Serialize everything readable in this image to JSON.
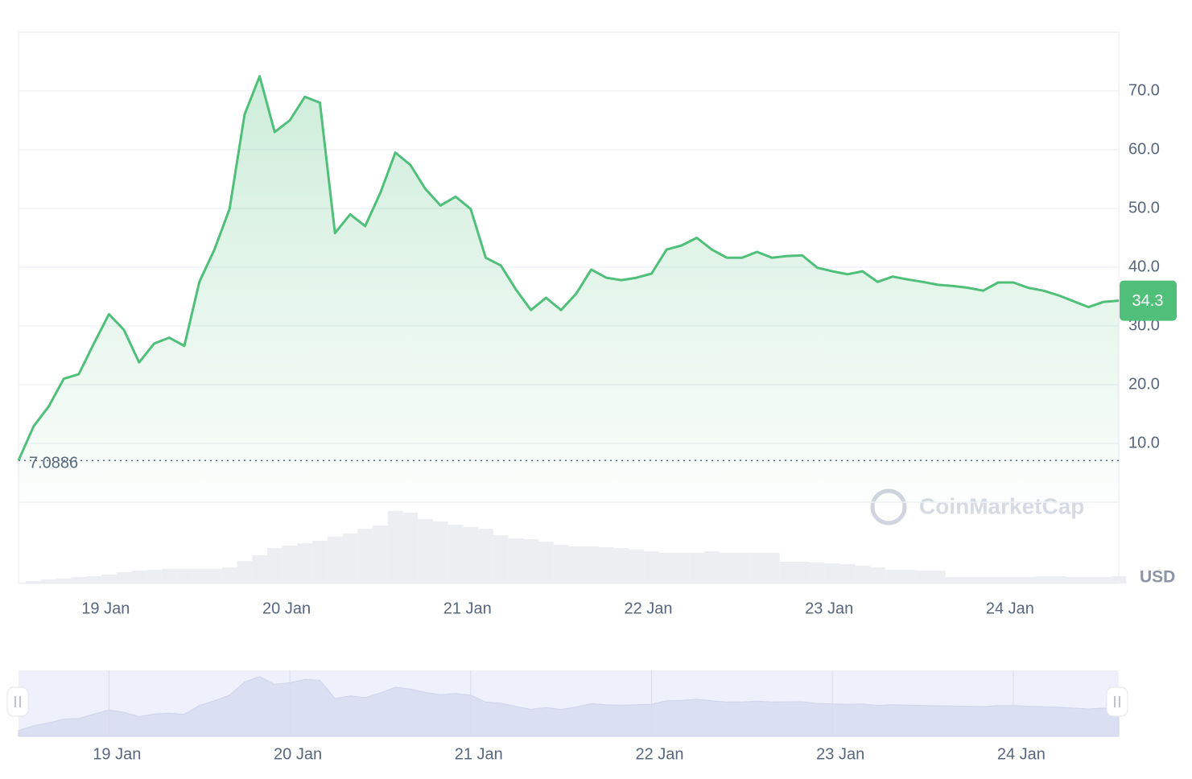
{
  "chart_data": {
    "type": "line",
    "categories": [
      null,
      null,
      null,
      null,
      null,
      null,
      "19 Jan",
      null,
      null,
      null,
      null,
      null,
      null,
      null,
      null,
      null,
      null,
      null,
      "20 Jan",
      null,
      null,
      null,
      null,
      null,
      null,
      null,
      null,
      null,
      null,
      null,
      "21 Jan",
      null,
      null,
      null,
      null,
      null,
      null,
      null,
      null,
      null,
      null,
      null,
      "22 Jan",
      null,
      null,
      null,
      null,
      null,
      null,
      null,
      null,
      null,
      null,
      null,
      "23 Jan",
      null,
      null,
      null,
      null,
      null,
      null,
      null,
      null,
      null,
      null,
      null,
      "24 Jan",
      null,
      null,
      null,
      null,
      null,
      null,
      null
    ],
    "values": [
      7.1,
      12.9,
      16.3,
      21,
      21.8,
      27,
      32,
      29.3,
      23.8,
      27,
      28,
      26.6,
      37.5,
      43,
      49.9,
      66,
      72.5,
      63,
      65,
      69,
      68,
      45.8,
      49,
      47,
      52.6,
      59.5,
      57.4,
      53.3,
      50.5,
      52,
      49.9,
      41.6,
      40.3,
      36.2,
      32.7,
      34.8,
      32.7,
      35.5,
      39.6,
      38.2,
      37.8,
      38.2,
      38.9,
      43,
      43.7,
      45,
      43,
      41.6,
      41.6,
      42.6,
      41.6,
      41.9,
      42,
      39.9,
      39.3,
      38.8,
      39.3,
      37.5,
      38.4,
      37.9,
      37.5,
      37,
      36.8,
      36.5,
      36,
      37.4,
      37.4,
      36.5,
      36,
      35.2,
      34.2,
      33.2,
      34.1,
      34.3
    ],
    "color": "#4fbf7a",
    "volume_values": [
      1,
      3,
      5,
      6,
      8,
      9,
      11,
      14,
      16,
      17,
      18,
      18,
      18,
      18,
      20,
      28,
      35,
      44,
      47,
      50,
      53,
      58,
      62,
      68,
      72,
      90,
      88,
      80,
      77,
      73,
      70,
      68,
      60,
      56,
      55,
      52,
      48,
      46,
      46,
      45,
      44,
      42,
      40,
      38,
      38,
      38,
      40,
      38,
      38,
      38,
      38,
      27,
      27,
      26,
      25,
      24,
      22,
      20,
      17,
      17,
      16,
      16,
      8,
      8,
      8,
      8,
      8,
      8,
      9,
      9,
      8,
      8,
      8,
      9
    ],
    "volume_color": "#eceef2",
    "ylim": [
      0,
      80
    ],
    "yticks": [
      {
        "value": 10,
        "label": "10.0"
      },
      {
        "value": 20,
        "label": "20.0"
      },
      {
        "value": 30,
        "label": "30.0"
      },
      {
        "value": 40,
        "label": "40.0"
      },
      {
        "value": 50,
        "label": "50.0"
      },
      {
        "value": 60,
        "label": "60.0"
      },
      {
        "value": 70,
        "label": "70.0"
      }
    ],
    "grid": true,
    "reference_value": 7.0886,
    "current_price": 34.3,
    "currency": "USD",
    "watermark": "CoinMarketCap"
  }
}
